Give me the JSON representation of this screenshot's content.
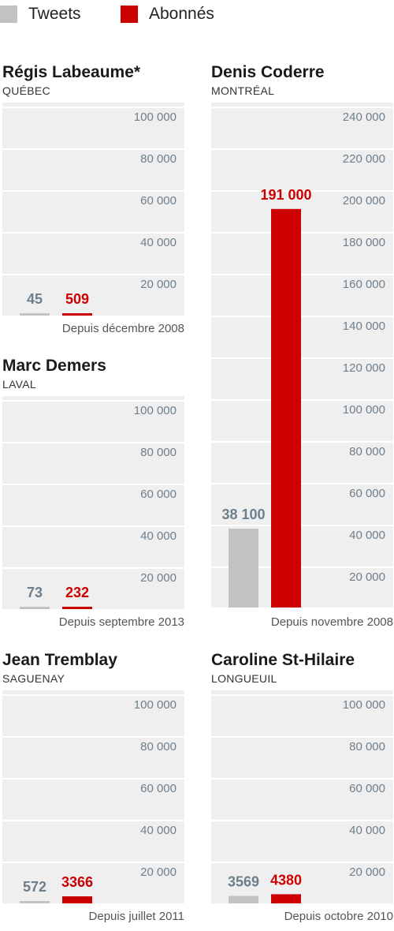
{
  "legend": [
    {
      "label": "Tweets",
      "color": "#c2c2c2"
    },
    {
      "label": "Abonnés",
      "color": "#cc0000"
    }
  ],
  "chart_data": [
    {
      "type": "bar",
      "title": "Régis Labeaume*",
      "subtitle": "QUÉBEC",
      "categories": [
        "Tweets",
        "Abonnés"
      ],
      "series": [
        {
          "values": [
            45,
            509
          ]
        }
      ],
      "value_labels": [
        "45",
        "509"
      ],
      "ylim": [
        0,
        100000
      ],
      "yticks": [
        20000,
        40000,
        60000,
        80000,
        100000
      ],
      "ytick_labels": [
        "20 000",
        "40 000",
        "60 000",
        "80 000",
        "100 000"
      ],
      "note": "Depuis décembre 2008"
    },
    {
      "type": "bar",
      "title": "Denis Coderre",
      "subtitle": "MONTRÉAL",
      "categories": [
        "Tweets",
        "Abonnés"
      ],
      "series": [
        {
          "values": [
            38100,
            191000
          ]
        }
      ],
      "value_labels": [
        "38 100",
        "191 000"
      ],
      "ylim": [
        0,
        240000
      ],
      "yticks": [
        20000,
        40000,
        60000,
        80000,
        100000,
        120000,
        140000,
        160000,
        180000,
        200000,
        220000,
        240000
      ],
      "ytick_labels": [
        "20 000",
        "40 000",
        "60 000",
        "80 000",
        "100 000",
        "120 000",
        "140 000",
        "160 000",
        "180 000",
        "200 000",
        "220 000",
        "240 000"
      ],
      "note": "Depuis novembre 2008"
    },
    {
      "type": "bar",
      "title": "Marc Demers",
      "subtitle": "LAVAL",
      "categories": [
        "Tweets",
        "Abonnés"
      ],
      "series": [
        {
          "values": [
            73,
            232
          ]
        }
      ],
      "value_labels": [
        "73",
        "232"
      ],
      "ylim": [
        0,
        100000
      ],
      "yticks": [
        20000,
        40000,
        60000,
        80000,
        100000
      ],
      "ytick_labels": [
        "20 000",
        "40 000",
        "60 000",
        "80 000",
        "100 000"
      ],
      "note": "Depuis septembre 2013"
    },
    {
      "type": "bar",
      "title": "Jean Tremblay",
      "subtitle": "SAGUENAY",
      "categories": [
        "Tweets",
        "Abonnés"
      ],
      "series": [
        {
          "values": [
            572,
            3366
          ]
        }
      ],
      "value_labels": [
        "572",
        "3366"
      ],
      "ylim": [
        0,
        100000
      ],
      "yticks": [
        20000,
        40000,
        60000,
        80000,
        100000
      ],
      "ytick_labels": [
        "20 000",
        "40 000",
        "60 000",
        "80 000",
        "100 000"
      ],
      "note": "Depuis juillet 2011"
    },
    {
      "type": "bar",
      "title": "Caroline St-Hilaire",
      "subtitle": "LONGUEUIL",
      "categories": [
        "Tweets",
        "Abonnés"
      ],
      "series": [
        {
          "values": [
            3569,
            4380
          ]
        }
      ],
      "value_labels": [
        "3569",
        "4380"
      ],
      "ylim": [
        0,
        100000
      ],
      "yticks": [
        20000,
        40000,
        60000,
        80000,
        100000
      ],
      "ytick_labels": [
        "20 000",
        "40 000",
        "60 000",
        "80 000",
        "100 000"
      ],
      "note": "Depuis octobre 2010"
    }
  ]
}
